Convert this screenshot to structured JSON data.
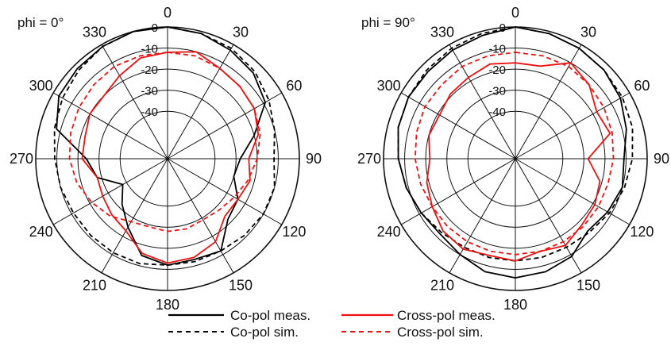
{
  "colors": {
    "copol": "#000000",
    "crosspol": "#ee1111",
    "grid": "#111111"
  },
  "angle_labels": [
    "0",
    "30",
    "60",
    "90",
    "120",
    "150",
    "180",
    "210",
    "240",
    "270",
    "300",
    "330"
  ],
  "radial_labels": [
    "0",
    "-10",
    "-20",
    "-30",
    "-40"
  ],
  "legend": {
    "copol_meas": "Co-pol meas.",
    "copol_sim": "Co-pol sim.",
    "crosspol_meas": "Cross-pol meas.",
    "crosspol_sim": "Cross-pol sim."
  },
  "chart_data": [
    {
      "type": "polar-line",
      "title": "phi = 0°",
      "rlim": [
        -40,
        0
      ],
      "angle_ticks_deg": [
        0,
        30,
        60,
        90,
        120,
        150,
        180,
        210,
        240,
        270,
        300,
        330
      ],
      "angle_step_deg": 15,
      "grid": true,
      "series": [
        {
          "name": "Co-pol meas.",
          "style": "solid",
          "color": "#000000",
          "values": [
            0,
            -1,
            -3,
            -5,
            -9,
            -20,
            -28,
            -30,
            -24,
            -22,
            -12,
            -13,
            -12,
            -15,
            -25,
            -32,
            -38,
            -28,
            -24,
            -8,
            -3,
            -2,
            -1,
            0
          ]
        },
        {
          "name": "Co-pol sim.",
          "style": "dashed",
          "color": "#000000",
          "values": [
            0,
            -1,
            -2,
            -4,
            -7,
            -10,
            -12,
            -10,
            -10,
            -11,
            -12,
            -12,
            -12,
            -11,
            -11,
            -11,
            -11,
            -10,
            -9,
            -7,
            -5,
            -3,
            -1,
            0
          ]
        },
        {
          "name": "Cross-pol meas.",
          "style": "solid",
          "color": "#ee1111",
          "values": [
            -12,
            -10,
            -13,
            -14,
            -15,
            -18,
            -24,
            -22,
            -24,
            -24,
            -17,
            -14,
            -13,
            -16,
            -23,
            -25,
            -27,
            -28,
            -22,
            -22,
            -20,
            -20,
            -17,
            -13
          ]
        },
        {
          "name": "Cross-pol sim.",
          "style": "dashed",
          "color": "#ee1111",
          "values": [
            -12,
            -12,
            -13,
            -14,
            -15,
            -17,
            -20,
            -23,
            -26,
            -28,
            -29,
            -28,
            -28,
            -29,
            -28,
            -24,
            -21,
            -18,
            -16,
            -15,
            -14,
            -13,
            -12,
            -12
          ]
        }
      ]
    },
    {
      "type": "polar-line",
      "title": "phi = 90°",
      "rlim": [
        -40,
        0
      ],
      "angle_ticks_deg": [
        0,
        30,
        60,
        90,
        120,
        150,
        180,
        210,
        240,
        270,
        300,
        330
      ],
      "angle_step_deg": 15,
      "grid": true,
      "series": [
        {
          "name": "Co-pol meas.",
          "style": "solid",
          "color": "#000000",
          "values": [
            0,
            -1,
            -2,
            -3,
            -5,
            -8,
            -11,
            -10,
            -12,
            -14,
            -9,
            -7,
            -6,
            -7,
            -10,
            -12,
            -11,
            -9,
            -7,
            -5,
            -4,
            -4,
            -3,
            -2
          ]
        },
        {
          "name": "Co-pol sim.",
          "style": "dashed",
          "color": "#000000",
          "values": [
            0,
            -1,
            -2,
            -3,
            -4,
            -5,
            -7,
            -9,
            -11,
            -13,
            -14,
            -14,
            -14,
            -14,
            -14,
            -13,
            -11,
            -9,
            -7,
            -5,
            -4,
            -3,
            -2,
            -1
          ]
        },
        {
          "name": "Cross-pol meas.",
          "style": "solid",
          "color": "#ee1111",
          "values": [
            -17,
            -17,
            -10,
            -13,
            -18,
            -16,
            -28,
            -21,
            -19,
            -18,
            -15,
            -17,
            -14,
            -15,
            -13,
            -14,
            -17,
            -19,
            -22,
            -20,
            -21,
            -19,
            -18,
            -16
          ]
        },
        {
          "name": "Cross-pol sim.",
          "style": "dashed",
          "color": "#ee1111",
          "values": [
            -12,
            -12,
            -12,
            -13,
            -14,
            -15,
            -16,
            -17,
            -17,
            -17,
            -17,
            -17,
            -17,
            -17,
            -17,
            -17,
            -17,
            -16,
            -15,
            -14,
            -13,
            -13,
            -12,
            -12
          ]
        }
      ]
    }
  ]
}
